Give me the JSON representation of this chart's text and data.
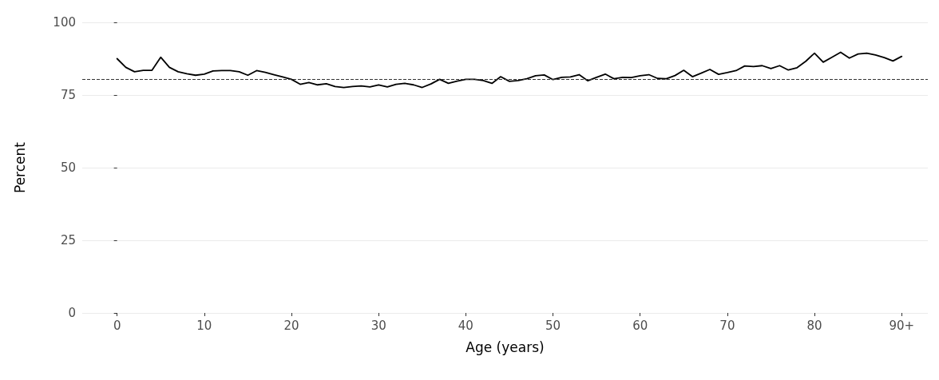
{
  "chart_data": {
    "type": "line",
    "xlabel": "Age (years)",
    "ylabel": "Percent",
    "x": [
      0,
      1,
      2,
      3,
      4,
      5,
      6,
      7,
      8,
      9,
      10,
      11,
      12,
      13,
      14,
      15,
      16,
      17,
      18,
      19,
      20,
      21,
      22,
      23,
      24,
      25,
      26,
      27,
      28,
      29,
      30,
      31,
      32,
      33,
      34,
      35,
      36,
      37,
      38,
      39,
      40,
      41,
      42,
      43,
      44,
      45,
      46,
      47,
      48,
      49,
      50,
      51,
      52,
      53,
      54,
      55,
      56,
      57,
      58,
      59,
      60,
      61,
      62,
      63,
      64,
      65,
      66,
      67,
      68,
      69,
      70,
      71,
      72,
      73,
      74,
      75,
      76,
      77,
      78,
      79,
      80,
      81,
      82,
      83,
      84,
      85,
      86,
      87,
      88,
      89,
      90
    ],
    "series": [
      {
        "color": "#000000",
        "values": [
          87.5,
          84.5,
          83,
          83.5,
          83.5,
          88,
          84.5,
          83,
          82.3,
          81.8,
          82.2,
          83.3,
          83.4,
          83.4,
          83,
          81.8,
          83.4,
          82.8,
          82,
          81.2,
          80.4,
          78.7,
          79.3,
          78.5,
          78.9,
          77.9,
          77.6,
          77.9,
          78.1,
          77.8,
          78.5,
          77.8,
          78.7,
          79,
          78.5,
          77.6,
          78.8,
          80.4,
          79,
          79.8,
          80.4,
          80.4,
          80,
          79,
          81.3,
          79.7,
          80,
          80.6,
          81.6,
          81.9,
          80.3,
          81.1,
          81.2,
          82,
          79.9,
          81.1,
          82.2,
          80.6,
          81.1,
          81,
          81.6,
          82,
          80.7,
          80.6,
          81.7,
          83.5,
          81.3,
          82.5,
          83.8,
          82.1,
          82.7,
          83.4,
          85,
          84.8,
          85.1,
          84.1,
          85.1,
          83.6,
          84.4,
          86.6,
          89.4,
          86.3,
          88,
          89.7,
          87.7,
          89.1,
          89.4,
          88.8,
          87.9,
          86.7,
          88.3
        ]
      }
    ],
    "xlim": [
      -4,
      93
    ],
    "xticks": [
      0,
      10,
      20,
      30,
      40,
      50,
      60,
      70,
      80,
      {
        "value": 90,
        "label": "90+"
      }
    ],
    "ylim": [
      0,
      100
    ],
    "yticks": [
      0,
      25,
      50,
      75,
      100
    ],
    "ref_lines": [
      {
        "axis": "y",
        "value": 80.5,
        "color": "#333333",
        "line_style": "dashed"
      }
    ],
    "grid": "y",
    "marker": "none",
    "line_style": "solid"
  }
}
